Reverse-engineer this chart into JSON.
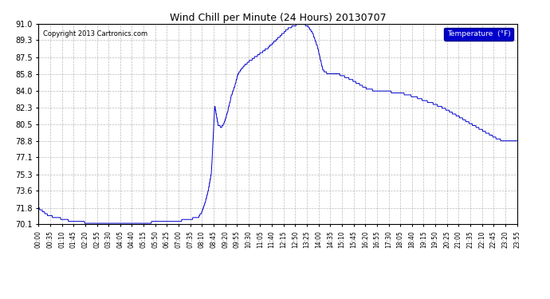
{
  "title": "Wind Chill per Minute (24 Hours) 20130707",
  "copyright": "Copyright 2013 Cartronics.com",
  "legend_label": "Temperature  (°F)",
  "line_color": "#0000cc",
  "background_color": "#ffffff",
  "grid_color": "#aaaaaa",
  "ylim": [
    70.1,
    91.0
  ],
  "yticks": [
    70.1,
    71.8,
    73.6,
    75.3,
    77.1,
    78.8,
    80.5,
    82.3,
    84.0,
    85.8,
    87.5,
    89.3,
    91.0
  ],
  "xtick_labels": [
    "00:00",
    "00:35",
    "01:10",
    "01:45",
    "02:20",
    "02:55",
    "03:30",
    "04:05",
    "04:40",
    "05:15",
    "05:50",
    "06:25",
    "07:00",
    "07:35",
    "08:10",
    "08:45",
    "09:20",
    "09:55",
    "10:30",
    "11:05",
    "11:40",
    "12:15",
    "12:50",
    "13:25",
    "14:00",
    "14:35",
    "15:10",
    "15:45",
    "16:20",
    "16:55",
    "17:30",
    "18:05",
    "18:40",
    "19:15",
    "19:50",
    "20:25",
    "21:00",
    "21:35",
    "22:10",
    "22:45",
    "23:20",
    "23:55"
  ],
  "num_points": 1440,
  "key_times": [
    0,
    30,
    90,
    150,
    200,
    250,
    310,
    370,
    430,
    480,
    490,
    500,
    510,
    520,
    530,
    540,
    550,
    560,
    570,
    580,
    590,
    600,
    615,
    630,
    650,
    670,
    690,
    720,
    750,
    780,
    795,
    810,
    825,
    840,
    855,
    870,
    885,
    900,
    920,
    940,
    960,
    975,
    990,
    1005,
    1020,
    1040,
    1060,
    1080,
    1100,
    1120,
    1140,
    1160,
    1180,
    1200,
    1220,
    1240,
    1260,
    1280,
    1300,
    1320,
    1340,
    1360,
    1380,
    1400,
    1420,
    1439
  ],
  "key_values": [
    71.8,
    71.0,
    70.5,
    70.25,
    70.2,
    70.2,
    70.25,
    70.35,
    70.5,
    70.8,
    71.3,
    72.2,
    73.5,
    75.5,
    82.5,
    80.5,
    80.2,
    80.8,
    82.0,
    83.5,
    84.5,
    85.8,
    86.5,
    87.0,
    87.5,
    88.0,
    88.5,
    89.5,
    90.5,
    91.0,
    91.0,
    90.8,
    90.0,
    88.5,
    86.2,
    85.8,
    85.8,
    85.8,
    85.5,
    85.2,
    84.8,
    84.5,
    84.2,
    84.1,
    84.0,
    84.0,
    83.9,
    83.8,
    83.7,
    83.5,
    83.3,
    83.0,
    82.8,
    82.5,
    82.2,
    81.8,
    81.4,
    81.0,
    80.6,
    80.2,
    79.8,
    79.4,
    79.0,
    78.8,
    78.8,
    78.8
  ]
}
